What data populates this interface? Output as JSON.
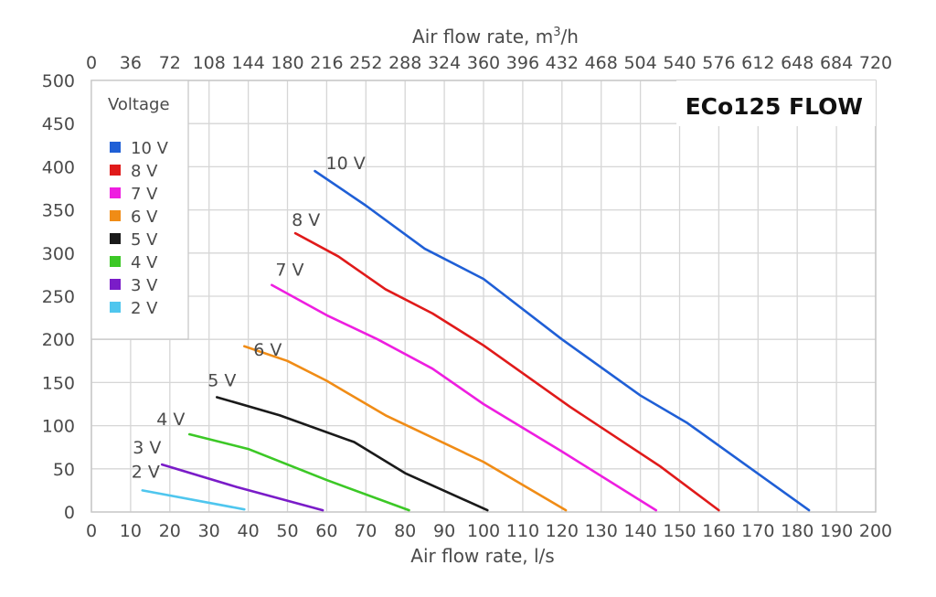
{
  "chart_data": {
    "type": "line",
    "title": "ECo125 FLOW",
    "xlabel": "Air flow rate, l/s",
    "x2label_prefix": "Air flow rate, m",
    "x2label_sup": "3",
    "x2label_suffix": "/h",
    "ylabel": "",
    "xlim": [
      0,
      200
    ],
    "ylim": [
      0,
      500
    ],
    "x2lim": [
      0,
      720
    ],
    "x_ticks": [
      "0",
      "10",
      "20",
      "30",
      "40",
      "50",
      "60",
      "70",
      "80",
      "90",
      "100",
      "110",
      "120",
      "130",
      "140",
      "150",
      "160",
      "170",
      "180",
      "190",
      "200"
    ],
    "x2_ticks": [
      "0",
      "36",
      "72",
      "108",
      "144",
      "180",
      "216",
      "252",
      "288",
      "324",
      "360",
      "396",
      "432",
      "468",
      "504",
      "540",
      "576",
      "612",
      "648",
      "684",
      "720"
    ],
    "y_ticks": [
      "0",
      "50",
      "100",
      "150",
      "200",
      "250",
      "300",
      "350",
      "400",
      "450",
      "500"
    ],
    "grid": true,
    "legend": {
      "title": "Voltage",
      "placement": "top-left",
      "entries": [
        "10 V",
        "8 V",
        "7 V",
        "6 V",
        "5 V",
        "4 V",
        "3 V",
        "2 V"
      ]
    },
    "series": [
      {
        "name": "10 V",
        "color": "#1f5fd6",
        "x": [
          57,
          70,
          85,
          100,
          120,
          140,
          152,
          183
        ],
        "y": [
          395,
          355,
          305,
          270,
          200,
          135,
          103,
          2
        ]
      },
      {
        "name": "8 V",
        "color": "#e01a1a",
        "x": [
          52,
          63,
          75,
          87,
          100,
          122,
          145,
          160
        ],
        "y": [
          323,
          296,
          258,
          230,
          193,
          122,
          53,
          2
        ]
      },
      {
        "name": "7 V",
        "color": "#ee1ee0",
        "x": [
          46,
          60,
          73,
          87,
          100,
          120,
          144
        ],
        "y": [
          263,
          228,
          200,
          166,
          125,
          70,
          2
        ]
      },
      {
        "name": "6 V",
        "color": "#f08c16",
        "x": [
          39,
          50,
          60,
          75,
          100,
          121
        ],
        "y": [
          192,
          175,
          152,
          112,
          58,
          2
        ]
      },
      {
        "name": "5 V",
        "color": "#1a1a1a",
        "x": [
          32,
          48,
          67,
          80,
          101
        ],
        "y": [
          133,
          112,
          81,
          45,
          2
        ]
      },
      {
        "name": "4 V",
        "color": "#3cc826",
        "x": [
          25,
          40,
          60,
          81
        ],
        "y": [
          90,
          73,
          37,
          2
        ]
      },
      {
        "name": "3 V",
        "color": "#7a1cc8",
        "x": [
          18,
          37,
          59
        ],
        "y": [
          55,
          29,
          2
        ]
      },
      {
        "name": "2 V",
        "color": "#4fc6ee",
        "x": [
          13,
          39
        ],
        "y": [
          25,
          3
        ]
      }
    ]
  }
}
